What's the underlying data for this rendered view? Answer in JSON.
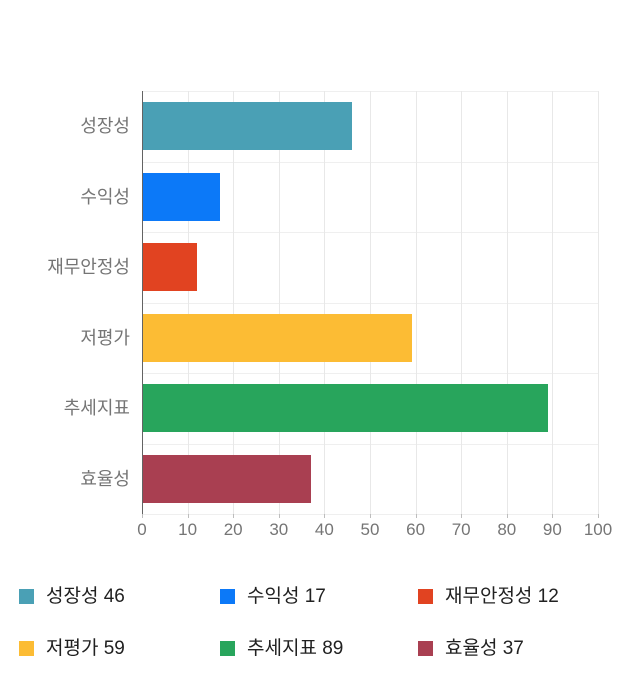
{
  "chart_data": {
    "type": "bar",
    "orientation": "horizontal",
    "title": "",
    "categories": [
      "성장성",
      "수익성",
      "재무안정성",
      "저평가",
      "추세지표",
      "효율성"
    ],
    "values": [
      46,
      17,
      12,
      59,
      89,
      37
    ],
    "bar_colors": [
      "#4aa0b5",
      "#0c79f8",
      "#e14321",
      "#fcbc34",
      "#28a55c",
      "#a93f51"
    ],
    "xlim": [
      0,
      100
    ],
    "x_ticks": [
      0,
      10,
      20,
      30,
      40,
      50,
      60,
      70,
      80,
      90,
      100
    ],
    "grid": "vertical",
    "legend_position": "bottom",
    "legend_items": [
      {
        "label": "성장성",
        "value": 46,
        "color": "#4aa0b5"
      },
      {
        "label": "수익성",
        "value": 17,
        "color": "#0c79f8"
      },
      {
        "label": "재무안정성",
        "value": 12,
        "color": "#e14321"
      },
      {
        "label": "저평가",
        "value": 59,
        "color": "#fcbc34"
      },
      {
        "label": "추세지표",
        "value": 89,
        "color": "#28a55c"
      },
      {
        "label": "효율성",
        "value": 37,
        "color": "#a93f51"
      }
    ]
  },
  "styles": {
    "background": "#ffffff",
    "axis_text_color": "#757575",
    "legend_text_color": "#212121",
    "gridline_color": "#e8e8e8",
    "baseline_color": "#636363",
    "row_line_color": "#efefef"
  }
}
